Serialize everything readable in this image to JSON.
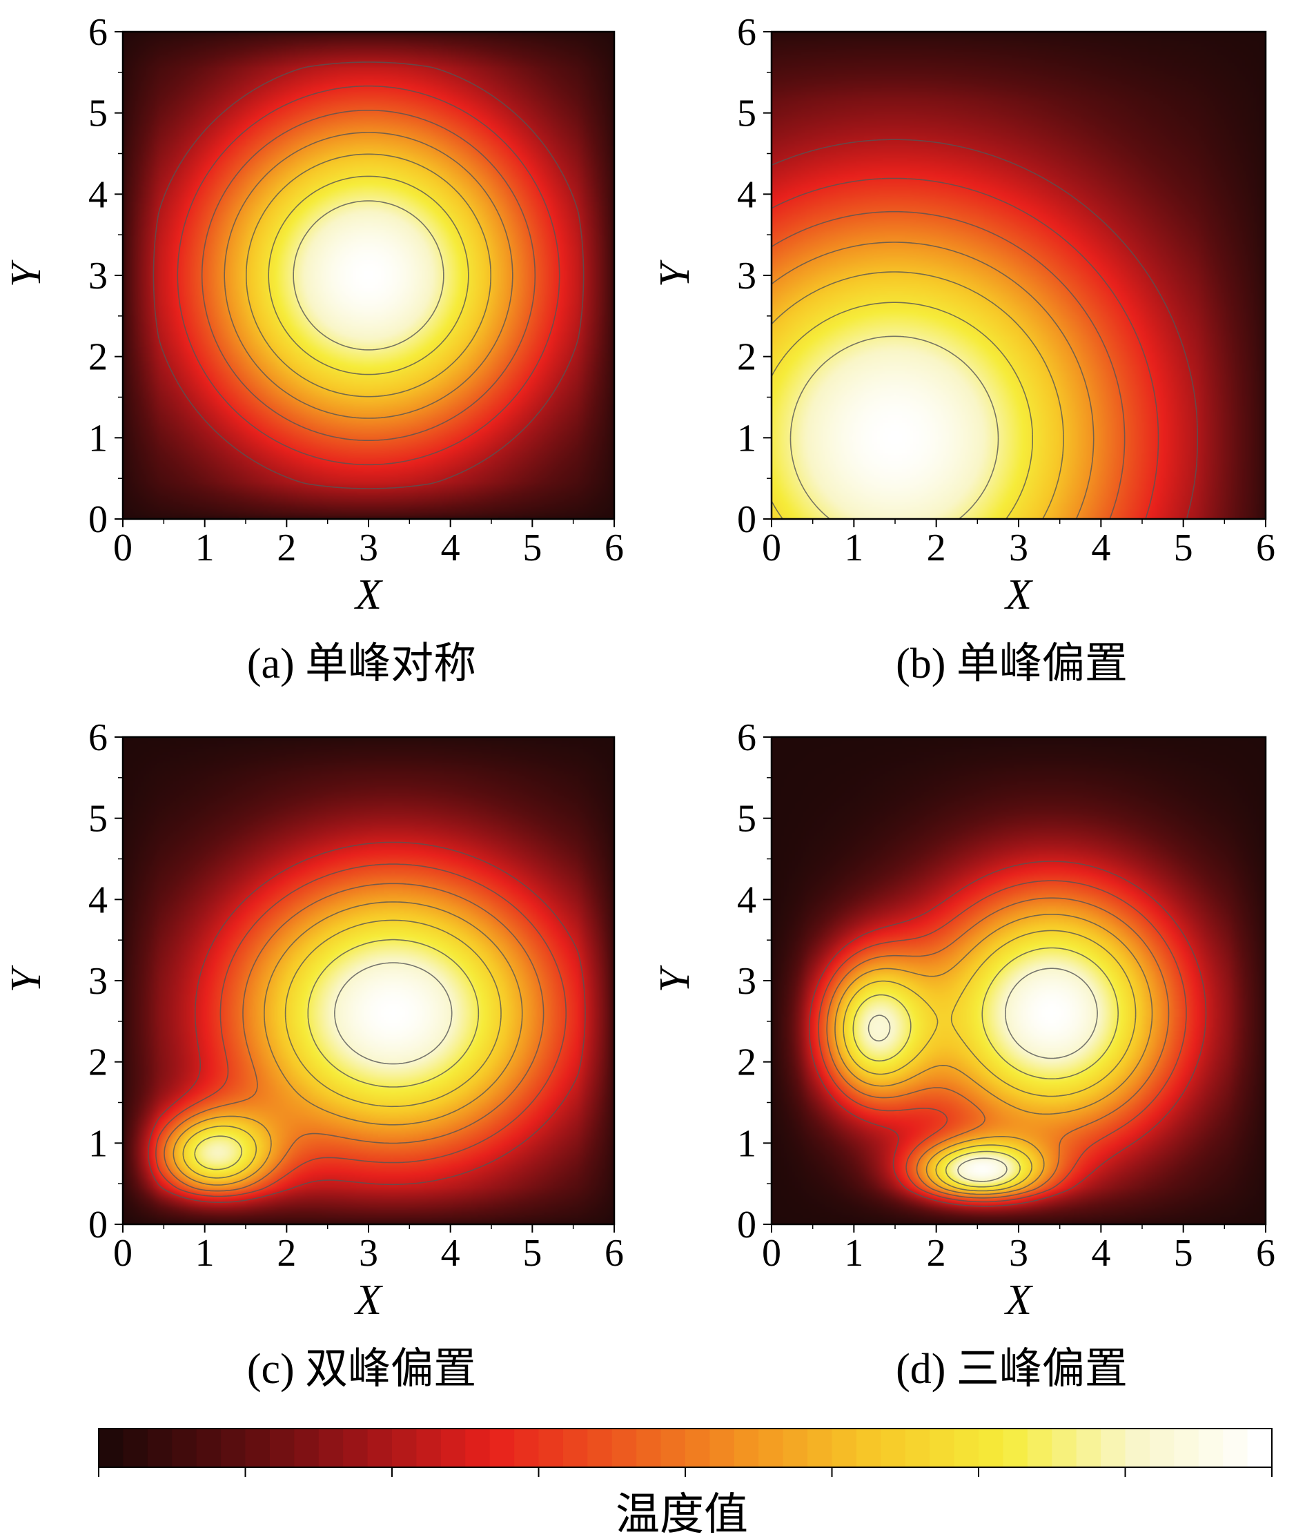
{
  "chart_data": [
    {
      "panel": "a",
      "type": "heatmap",
      "caption": "(a)  单峰对称",
      "xlabel": "X",
      "ylabel": "Y",
      "xlim": [
        0,
        6
      ],
      "ylim": [
        0,
        6
      ],
      "x_ticks": [
        "0",
        "1",
        "2",
        "3",
        "4",
        "5",
        "6"
      ],
      "y_ticks": [
        "0",
        "1",
        "2",
        "3",
        "4",
        "5",
        "6"
      ],
      "peaks": [
        {
          "x": 3.0,
          "y": 3.0,
          "amplitude": 1.0,
          "sigma_x": 1.6,
          "sigma_y": 1.6
        }
      ],
      "contour_levels": [
        0.25,
        0.35,
        0.45,
        0.55,
        0.65,
        0.75,
        0.85
      ]
    },
    {
      "panel": "b",
      "type": "heatmap",
      "caption": "(b)  单峰偏置",
      "xlabel": "X",
      "ylabel": "Y",
      "xlim": [
        0,
        6
      ],
      "ylim": [
        0,
        6
      ],
      "x_ticks": [
        "0",
        "1",
        "2",
        "3",
        "4",
        "5",
        "6"
      ],
      "y_ticks": [
        "0",
        "1",
        "2",
        "3",
        "4",
        "5",
        "6"
      ],
      "peaks": [
        {
          "x": 1.5,
          "y": 1.0,
          "amplitude": 1.0,
          "sigma_x": 2.2,
          "sigma_y": 2.2
        }
      ],
      "contour_levels": [
        0.25,
        0.35,
        0.45,
        0.55,
        0.65,
        0.75,
        0.85
      ]
    },
    {
      "panel": "c",
      "type": "heatmap",
      "caption": "(c)  双峰偏置",
      "xlabel": "X",
      "ylabel": "Y",
      "xlim": [
        0,
        6
      ],
      "ylim": [
        0,
        6
      ],
      "x_ticks": [
        "0",
        "1",
        "2",
        "3",
        "4",
        "5",
        "6"
      ],
      "y_ticks": [
        "0",
        "1",
        "2",
        "3",
        "4",
        "5",
        "6"
      ],
      "peaks": [
        {
          "x": 3.3,
          "y": 2.6,
          "amplitude": 1.0,
          "sigma_x": 1.55,
          "sigma_y": 1.35
        },
        {
          "x": 1.1,
          "y": 0.85,
          "amplitude": 0.72,
          "sigma_x": 0.55,
          "sigma_y": 0.4
        }
      ],
      "contour_levels": [
        0.3,
        0.4,
        0.5,
        0.6,
        0.7,
        0.8,
        0.9
      ]
    },
    {
      "panel": "d",
      "type": "heatmap",
      "caption": "(d)  三峰偏置",
      "xlabel": "X",
      "ylabel": "Y",
      "xlim": [
        0,
        6
      ],
      "ylim": [
        0,
        6
      ],
      "x_ticks": [
        "0",
        "1",
        "2",
        "3",
        "4",
        "5",
        "6"
      ],
      "y_ticks": [
        "0",
        "1",
        "2",
        "3",
        "4",
        "5",
        "6"
      ],
      "peaks": [
        {
          "x": 3.4,
          "y": 2.6,
          "amplitude": 1.0,
          "sigma_x": 1.2,
          "sigma_y": 1.2
        },
        {
          "x": 1.2,
          "y": 2.4,
          "amplitude": 0.72,
          "sigma_x": 0.5,
          "sigma_y": 0.7
        },
        {
          "x": 2.5,
          "y": 0.65,
          "amplitude": 0.78,
          "sigma_x": 0.6,
          "sigma_y": 0.28
        }
      ],
      "contour_levels": [
        0.3,
        0.4,
        0.5,
        0.6,
        0.7,
        0.8,
        0.9
      ]
    }
  ],
  "colorbar": {
    "title": "温度值",
    "colormap": [
      "#200808",
      "#5a0d0f",
      "#a01518",
      "#e8211c",
      "#ed5a1f",
      "#f39521",
      "#f7c928",
      "#f6ec3a",
      "#f9f6c8",
      "#ffffff"
    ]
  }
}
